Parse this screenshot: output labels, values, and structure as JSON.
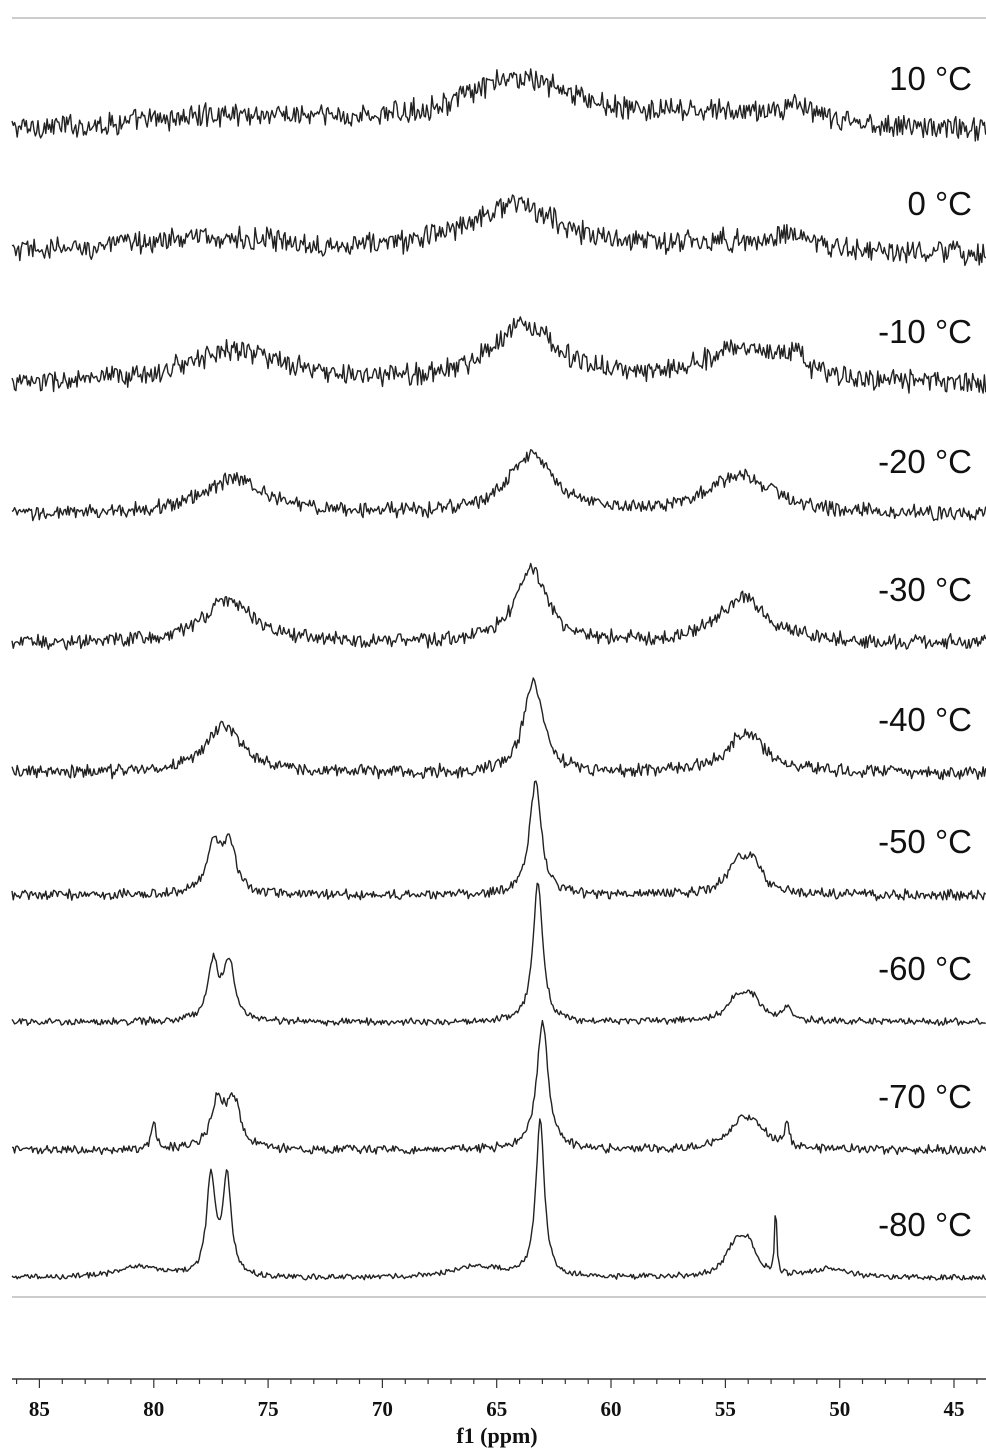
{
  "chart_data": {
    "type": "line",
    "title": "",
    "xlabel": "f1 (ppm)",
    "ylabel": "",
    "xlim": [
      86.2,
      43.6
    ],
    "x_reversed": true,
    "x_ticks": [
      85,
      80,
      75,
      70,
      65,
      60,
      55,
      50,
      45
    ],
    "x_tick_labels": [
      "85",
      "80",
      "75",
      "70",
      "65",
      "60",
      "55",
      "50",
      "45"
    ],
    "stacked": true,
    "grid": false,
    "legend": "none",
    "line_color": "#222222",
    "series": [
      {
        "label": "10 °C",
        "noise": 0.16,
        "peaks": [
          {
            "x": 76.5,
            "height": 0.25,
            "width": 5.0
          },
          {
            "x": 64.0,
            "height": 0.85,
            "width": 3.2
          },
          {
            "x": 54.5,
            "height": 0.25,
            "width": 4.5
          },
          {
            "x": 52.0,
            "height": 0.25,
            "width": 0.6
          }
        ]
      },
      {
        "label": "0 °C",
        "noise": 0.16,
        "peaks": [
          {
            "x": 78.0,
            "height": 0.3,
            "width": 5.0
          },
          {
            "x": 64.3,
            "height": 0.85,
            "width": 2.6
          },
          {
            "x": 54.5,
            "height": 0.2,
            "width": 4.0
          },
          {
            "x": 52.0,
            "height": 0.25,
            "width": 0.7
          }
        ]
      },
      {
        "label": "-10 °C",
        "noise": 0.15,
        "peaks": [
          {
            "x": 76.5,
            "height": 0.6,
            "width": 2.5
          },
          {
            "x": 63.8,
            "height": 1.0,
            "width": 1.8
          },
          {
            "x": 54.3,
            "height": 0.6,
            "width": 2.2
          },
          {
            "x": 52.0,
            "height": 0.3,
            "width": 0.5
          }
        ]
      },
      {
        "label": "-20 °C",
        "noise": 0.1,
        "peaks": [
          {
            "x": 76.5,
            "height": 0.6,
            "width": 1.8
          },
          {
            "x": 63.5,
            "height": 1.0,
            "width": 1.2
          },
          {
            "x": 54.3,
            "height": 0.65,
            "width": 1.8
          }
        ]
      },
      {
        "label": "-30 °C",
        "noise": 0.1,
        "peaks": [
          {
            "x": 76.7,
            "height": 0.75,
            "width": 1.3
          },
          {
            "x": 63.5,
            "height": 1.3,
            "width": 0.8
          },
          {
            "x": 54.2,
            "height": 0.75,
            "width": 1.3
          }
        ]
      },
      {
        "label": "-40 °C",
        "noise": 0.09,
        "peaks": [
          {
            "x": 76.9,
            "height": 0.8,
            "width": 1.0
          },
          {
            "x": 63.4,
            "height": 1.6,
            "width": 0.5
          },
          {
            "x": 54.1,
            "height": 0.7,
            "width": 1.0
          }
        ]
      },
      {
        "label": "-50 °C",
        "noise": 0.07,
        "peaks": [
          {
            "x": 77.4,
            "height": 0.8,
            "width": 0.35
          },
          {
            "x": 76.7,
            "height": 0.9,
            "width": 0.35
          },
          {
            "x": 63.3,
            "height": 2.0,
            "width": 0.3
          },
          {
            "x": 54.5,
            "height": 0.5,
            "width": 0.5
          },
          {
            "x": 53.8,
            "height": 0.5,
            "width": 0.5
          }
        ]
      },
      {
        "label": "-60 °C",
        "noise": 0.05,
        "peaks": [
          {
            "x": 77.4,
            "height": 1.0,
            "width": 0.28
          },
          {
            "x": 76.7,
            "height": 1.0,
            "width": 0.28
          },
          {
            "x": 63.2,
            "height": 2.4,
            "width": 0.25
          },
          {
            "x": 54.5,
            "height": 0.4,
            "width": 0.5
          },
          {
            "x": 53.8,
            "height": 0.35,
            "width": 0.5
          },
          {
            "x": 52.3,
            "height": 0.25,
            "width": 0.2
          }
        ]
      },
      {
        "label": "-70 °C",
        "noise": 0.06,
        "peaks": [
          {
            "x": 80.0,
            "height": 0.5,
            "width": 0.12
          },
          {
            "x": 77.2,
            "height": 0.8,
            "width": 0.35
          },
          {
            "x": 76.5,
            "height": 0.8,
            "width": 0.35
          },
          {
            "x": 63.0,
            "height": 2.2,
            "width": 0.3
          },
          {
            "x": 54.4,
            "height": 0.4,
            "width": 0.6
          },
          {
            "x": 53.7,
            "height": 0.35,
            "width": 0.6
          },
          {
            "x": 52.3,
            "height": 0.45,
            "width": 0.12
          }
        ]
      },
      {
        "label": "-80 °C",
        "noise": 0.04,
        "peaks": [
          {
            "x": 80.5,
            "height": 0.2,
            "width": 1.2
          },
          {
            "x": 77.5,
            "height": 1.7,
            "width": 0.22
          },
          {
            "x": 76.8,
            "height": 1.7,
            "width": 0.22
          },
          {
            "x": 65.8,
            "height": 0.2,
            "width": 1.2
          },
          {
            "x": 63.1,
            "height": 2.7,
            "width": 0.22
          },
          {
            "x": 54.6,
            "height": 0.5,
            "width": 0.5
          },
          {
            "x": 54.0,
            "height": 0.5,
            "width": 0.4
          },
          {
            "x": 52.8,
            "height": 1.2,
            "width": 0.05
          },
          {
            "x": 50.5,
            "height": 0.15,
            "width": 1.0
          }
        ]
      }
    ]
  }
}
